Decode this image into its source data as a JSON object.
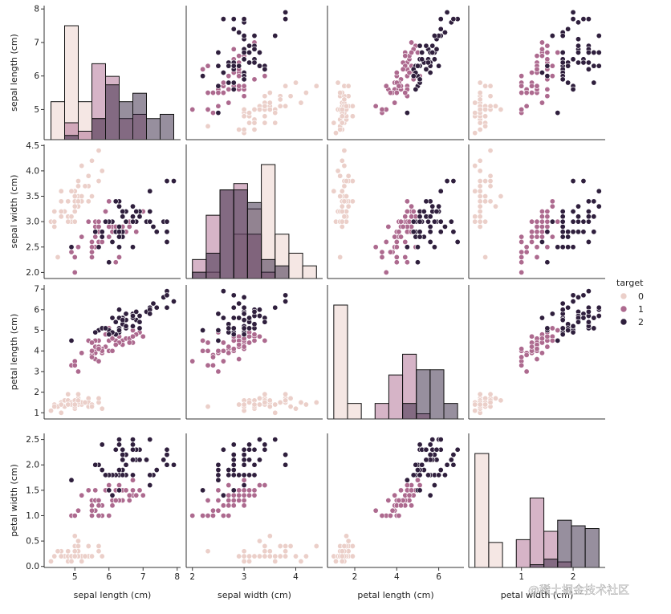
{
  "chart_data": {
    "type": "scatter",
    "kind": "pairplot",
    "variables": [
      "sepal length (cm)",
      "sepal width (cm)",
      "petal length (cm)",
      "petal width (cm)"
    ],
    "axis_ranges": {
      "sepal length (cm)": [
        4.1,
        8.1
      ],
      "sepal width (cm)": [
        1.88,
        4.52
      ],
      "petal length (cm)": [
        0.7,
        7.2
      ],
      "petal width (cm)": [
        -0.02,
        2.62
      ]
    },
    "ticks": {
      "sepal length (cm)": [
        5,
        6,
        7,
        8
      ],
      "sepal width (cm)": [
        2,
        3,
        4
      ],
      "sepal width (cm)_y": [
        2.0,
        2.5,
        3.0,
        3.5,
        4.0,
        4.5
      ],
      "petal length (cm)": [
        2,
        4,
        6
      ],
      "petal length (cm)_y": [
        1,
        2,
        3,
        4,
        5,
        6,
        7
      ],
      "petal width (cm)": [
        1,
        2
      ],
      "petal width (cm)_y": [
        0.0,
        0.5,
        1.0,
        1.5,
        2.0,
        2.5
      ],
      "sepal length (cm)_y": [
        5,
        6,
        7,
        8
      ]
    },
    "legend": {
      "title": "target",
      "position": "right",
      "entries": [
        "0",
        "1",
        "2"
      ]
    },
    "hue_colors": [
      "#ebcfc9",
      "#ad6a8f",
      "#2f1f3d"
    ],
    "diagonal": "histogram",
    "grid": false,
    "series": [
      {
        "name": "0",
        "points": [
          [
            5.1,
            3.5,
            1.4,
            0.2
          ],
          [
            4.9,
            3.0,
            1.4,
            0.2
          ],
          [
            4.7,
            3.2,
            1.3,
            0.2
          ],
          [
            4.6,
            3.1,
            1.5,
            0.2
          ],
          [
            5.0,
            3.6,
            1.4,
            0.2
          ],
          [
            5.4,
            3.9,
            1.7,
            0.4
          ],
          [
            4.6,
            3.4,
            1.4,
            0.3
          ],
          [
            5.0,
            3.4,
            1.5,
            0.2
          ],
          [
            4.4,
            2.9,
            1.4,
            0.2
          ],
          [
            4.9,
            3.1,
            1.5,
            0.1
          ],
          [
            5.4,
            3.7,
            1.5,
            0.2
          ],
          [
            4.8,
            3.4,
            1.6,
            0.2
          ],
          [
            4.8,
            3.0,
            1.4,
            0.1
          ],
          [
            4.3,
            3.0,
            1.1,
            0.1
          ],
          [
            5.8,
            4.0,
            1.2,
            0.2
          ],
          [
            5.7,
            4.4,
            1.5,
            0.4
          ],
          [
            5.4,
            3.9,
            1.3,
            0.4
          ],
          [
            5.1,
            3.5,
            1.4,
            0.3
          ],
          [
            5.7,
            3.8,
            1.7,
            0.3
          ],
          [
            5.1,
            3.8,
            1.5,
            0.3
          ],
          [
            5.4,
            3.4,
            1.7,
            0.2
          ],
          [
            5.1,
            3.7,
            1.5,
            0.4
          ],
          [
            4.6,
            3.6,
            1.0,
            0.2
          ],
          [
            5.1,
            3.3,
            1.7,
            0.5
          ],
          [
            4.8,
            3.4,
            1.9,
            0.2
          ],
          [
            5.0,
            3.0,
            1.6,
            0.2
          ],
          [
            5.0,
            3.4,
            1.6,
            0.4
          ],
          [
            5.2,
            3.5,
            1.5,
            0.2
          ],
          [
            5.2,
            3.4,
            1.4,
            0.2
          ],
          [
            4.7,
            3.2,
            1.6,
            0.2
          ],
          [
            4.8,
            3.1,
            1.6,
            0.2
          ],
          [
            5.4,
            3.4,
            1.5,
            0.4
          ],
          [
            5.2,
            4.1,
            1.5,
            0.1
          ],
          [
            5.5,
            4.2,
            1.4,
            0.2
          ],
          [
            4.9,
            3.1,
            1.5,
            0.2
          ],
          [
            5.0,
            3.2,
            1.2,
            0.2
          ],
          [
            5.5,
            3.5,
            1.3,
            0.2
          ],
          [
            4.9,
            3.6,
            1.4,
            0.1
          ],
          [
            4.4,
            3.0,
            1.3,
            0.2
          ],
          [
            5.1,
            3.4,
            1.5,
            0.2
          ],
          [
            5.0,
            3.5,
            1.3,
            0.3
          ],
          [
            4.5,
            2.3,
            1.3,
            0.3
          ],
          [
            4.4,
            3.2,
            1.3,
            0.2
          ],
          [
            5.0,
            3.5,
            1.6,
            0.6
          ],
          [
            5.1,
            3.8,
            1.9,
            0.4
          ],
          [
            4.8,
            3.0,
            1.4,
            0.3
          ],
          [
            5.1,
            3.8,
            1.6,
            0.2
          ],
          [
            4.6,
            3.2,
            1.4,
            0.2
          ],
          [
            5.3,
            3.7,
            1.5,
            0.2
          ],
          [
            5.0,
            3.3,
            1.4,
            0.2
          ]
        ]
      },
      {
        "name": "1",
        "points": [
          [
            7.0,
            3.2,
            4.7,
            1.4
          ],
          [
            6.4,
            3.2,
            4.5,
            1.5
          ],
          [
            6.9,
            3.1,
            4.9,
            1.5
          ],
          [
            5.5,
            2.3,
            4.0,
            1.3
          ],
          [
            6.5,
            2.8,
            4.6,
            1.5
          ],
          [
            5.7,
            2.8,
            4.5,
            1.3
          ],
          [
            6.3,
            3.3,
            4.7,
            1.6
          ],
          [
            4.9,
            2.4,
            3.3,
            1.0
          ],
          [
            6.6,
            2.9,
            4.6,
            1.3
          ],
          [
            5.2,
            2.7,
            3.9,
            1.4
          ],
          [
            5.0,
            2.0,
            3.5,
            1.0
          ],
          [
            5.9,
            3.0,
            4.2,
            1.5
          ],
          [
            6.0,
            2.2,
            4.0,
            1.0
          ],
          [
            6.1,
            2.9,
            4.7,
            1.4
          ],
          [
            5.6,
            2.9,
            3.6,
            1.3
          ],
          [
            6.7,
            3.1,
            4.4,
            1.4
          ],
          [
            5.6,
            3.0,
            4.5,
            1.5
          ],
          [
            5.8,
            2.7,
            4.1,
            1.0
          ],
          [
            6.2,
            2.2,
            4.5,
            1.5
          ],
          [
            5.6,
            2.5,
            3.9,
            1.1
          ],
          [
            5.9,
            3.2,
            4.8,
            1.8
          ],
          [
            6.1,
            2.8,
            4.0,
            1.3
          ],
          [
            6.3,
            2.5,
            4.9,
            1.5
          ],
          [
            6.1,
            2.8,
            4.7,
            1.2
          ],
          [
            6.4,
            2.9,
            4.3,
            1.3
          ],
          [
            6.6,
            3.0,
            4.4,
            1.4
          ],
          [
            6.8,
            2.8,
            4.8,
            1.4
          ],
          [
            6.7,
            3.0,
            5.0,
            1.7
          ],
          [
            6.0,
            2.9,
            4.5,
            1.5
          ],
          [
            5.7,
            2.6,
            3.5,
            1.0
          ],
          [
            5.5,
            2.4,
            3.8,
            1.1
          ],
          [
            5.5,
            2.4,
            3.7,
            1.0
          ],
          [
            5.8,
            2.7,
            3.9,
            1.2
          ],
          [
            6.0,
            2.7,
            5.1,
            1.6
          ],
          [
            5.4,
            3.0,
            4.5,
            1.5
          ],
          [
            6.0,
            3.4,
            4.5,
            1.6
          ],
          [
            6.7,
            3.1,
            4.7,
            1.5
          ],
          [
            6.3,
            2.3,
            4.4,
            1.3
          ],
          [
            5.6,
            3.0,
            4.1,
            1.3
          ],
          [
            5.5,
            2.5,
            4.0,
            1.3
          ],
          [
            5.5,
            2.6,
            4.4,
            1.2
          ],
          [
            6.1,
            3.0,
            4.6,
            1.4
          ],
          [
            5.8,
            2.6,
            4.0,
            1.2
          ],
          [
            5.0,
            2.3,
            3.3,
            1.0
          ],
          [
            5.6,
            2.7,
            4.2,
            1.3
          ],
          [
            5.7,
            3.0,
            4.2,
            1.2
          ],
          [
            5.7,
            2.9,
            4.2,
            1.3
          ],
          [
            6.2,
            2.9,
            4.3,
            1.3
          ],
          [
            5.1,
            2.5,
            3.0,
            1.1
          ],
          [
            5.7,
            2.8,
            4.1,
            1.3
          ]
        ]
      },
      {
        "name": "2",
        "points": [
          [
            6.3,
            3.3,
            6.0,
            2.5
          ],
          [
            5.8,
            2.7,
            5.1,
            1.9
          ],
          [
            7.1,
            3.0,
            5.9,
            2.1
          ],
          [
            6.3,
            2.9,
            5.6,
            1.8
          ],
          [
            6.5,
            3.0,
            5.8,
            2.2
          ],
          [
            7.6,
            3.0,
            6.6,
            2.1
          ],
          [
            4.9,
            2.5,
            4.5,
            1.7
          ],
          [
            7.3,
            2.9,
            6.3,
            1.8
          ],
          [
            6.7,
            2.5,
            5.8,
            1.8
          ],
          [
            7.2,
            3.6,
            6.1,
            2.5
          ],
          [
            6.5,
            3.2,
            5.1,
            2.0
          ],
          [
            6.4,
            2.7,
            5.3,
            1.9
          ],
          [
            6.8,
            3.0,
            5.5,
            2.1
          ],
          [
            5.7,
            2.5,
            5.0,
            2.0
          ],
          [
            5.8,
            2.8,
            5.1,
            2.4
          ],
          [
            6.4,
            3.2,
            5.3,
            2.3
          ],
          [
            6.5,
            3.0,
            5.5,
            1.8
          ],
          [
            7.7,
            3.8,
            6.7,
            2.2
          ],
          [
            7.7,
            2.6,
            6.9,
            2.3
          ],
          [
            6.0,
            2.2,
            5.0,
            1.5
          ],
          [
            6.9,
            3.2,
            5.7,
            2.3
          ],
          [
            5.6,
            2.8,
            4.9,
            2.0
          ],
          [
            7.7,
            2.8,
            6.7,
            2.0
          ],
          [
            6.3,
            2.7,
            4.9,
            1.8
          ],
          [
            6.7,
            3.3,
            5.7,
            2.1
          ],
          [
            7.2,
            3.2,
            6.0,
            1.8
          ],
          [
            6.2,
            2.8,
            4.8,
            1.8
          ],
          [
            6.1,
            3.0,
            4.9,
            1.8
          ],
          [
            6.4,
            2.8,
            5.6,
            2.1
          ],
          [
            7.2,
            3.0,
            5.8,
            1.6
          ],
          [
            7.4,
            2.8,
            6.1,
            1.9
          ],
          [
            7.9,
            3.8,
            6.4,
            2.0
          ],
          [
            6.4,
            2.8,
            5.6,
            2.2
          ],
          [
            6.3,
            2.8,
            5.1,
            1.5
          ],
          [
            6.1,
            2.6,
            5.6,
            1.4
          ],
          [
            7.7,
            3.0,
            6.1,
            2.3
          ],
          [
            6.3,
            3.4,
            5.6,
            2.4
          ],
          [
            6.4,
            3.1,
            5.5,
            1.8
          ],
          [
            6.0,
            3.0,
            4.8,
            1.8
          ],
          [
            6.9,
            3.1,
            5.4,
            2.1
          ],
          [
            6.7,
            3.1,
            5.6,
            2.4
          ],
          [
            6.9,
            3.1,
            5.1,
            2.3
          ],
          [
            5.8,
            2.7,
            5.1,
            1.9
          ],
          [
            6.8,
            3.2,
            5.9,
            2.3
          ],
          [
            6.7,
            3.3,
            5.7,
            2.5
          ],
          [
            6.7,
            3.0,
            5.2,
            2.3
          ],
          [
            6.3,
            2.5,
            5.0,
            1.9
          ],
          [
            6.5,
            3.0,
            5.2,
            2.0
          ],
          [
            6.2,
            3.4,
            5.4,
            2.3
          ],
          [
            5.9,
            3.0,
            5.1,
            1.8
          ]
        ]
      }
    ]
  },
  "watermark": {
    "text": "@稀土掘金技术社区"
  }
}
